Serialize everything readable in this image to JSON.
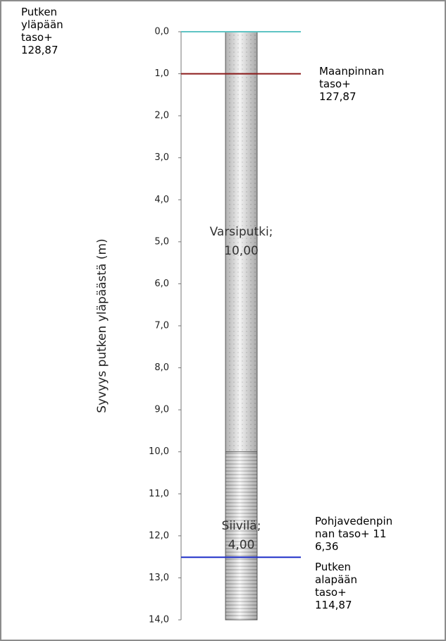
{
  "chart_data": {
    "type": "stacked_bar",
    "ylabel": "Syvyys putken yläpäästä (m)",
    "ylim": [
      0,
      14
    ],
    "inverted": true,
    "yticks": [
      {
        "value": 0,
        "label": "0,0"
      },
      {
        "value": 1,
        "label": "1,0"
      },
      {
        "value": 2,
        "label": "2,0"
      },
      {
        "value": 3,
        "label": "3,0"
      },
      {
        "value": 4,
        "label": "4,0"
      },
      {
        "value": 5,
        "label": "5,0"
      },
      {
        "value": 6,
        "label": "6,0"
      },
      {
        "value": 7,
        "label": "7,0"
      },
      {
        "value": 8,
        "label": "8,0"
      },
      {
        "value": 9,
        "label": "9,0"
      },
      {
        "value": 10,
        "label": "10,0"
      },
      {
        "value": 11,
        "label": "11,0"
      },
      {
        "value": 12,
        "label": "12,0"
      },
      {
        "value": 13,
        "label": "13,0"
      },
      {
        "value": 14,
        "label": "14,0"
      }
    ],
    "series": [
      {
        "name": "Varsiputki;",
        "color": "#e4e4e4",
        "pattern": "dots",
        "values": [
          10
        ],
        "value_labels": [
          "10,00"
        ]
      },
      {
        "name": "Siivilä;",
        "color": "#d8d8d8",
        "pattern": "stripes",
        "values": [
          4
        ],
        "value_labels": [
          "4,00"
        ]
      }
    ],
    "reference_lines": [
      {
        "value": 0,
        "color": "#5fc4c4"
      },
      {
        "value": 1,
        "color": "#8b1a1a"
      },
      {
        "value": 12.51,
        "color": "#1f2fc8"
      }
    ],
    "annotations": [
      {
        "text": "Putken yläpään taso+ 128,87"
      },
      {
        "text": "Maanpinnan taso+ 127,87"
      },
      {
        "text": "Pohjavedenpinnan taso+ 116,36"
      },
      {
        "text": "Putken alapään taso+ 114,87"
      }
    ]
  }
}
